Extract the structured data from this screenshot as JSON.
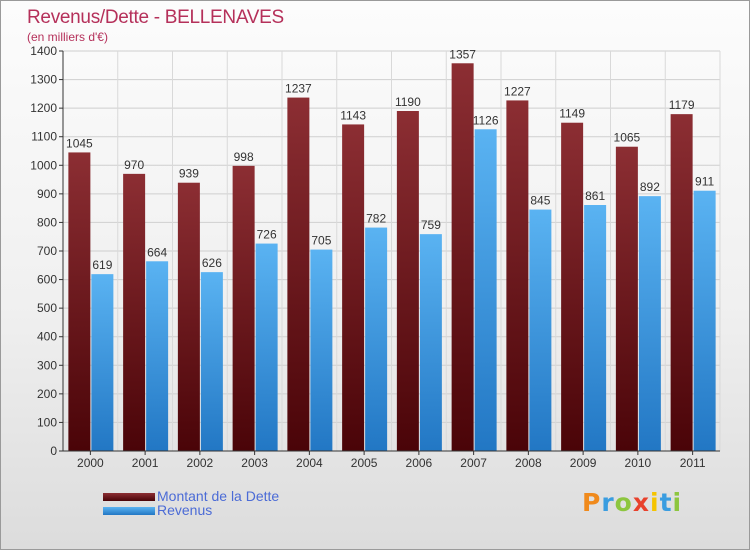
{
  "title": "Revenus/Dette - BELLENAVES",
  "subtitle": "(en milliers d'€)",
  "chart_data": {
    "type": "bar",
    "categories": [
      "2000",
      "2001",
      "2002",
      "2003",
      "2004",
      "2005",
      "2006",
      "2007",
      "2008",
      "2009",
      "2010",
      "2011"
    ],
    "series": [
      {
        "name": "Montant de la Dette",
        "values": [
          1045,
          970,
          939,
          998,
          1237,
          1143,
          1190,
          1357,
          1227,
          1149,
          1065,
          1179
        ],
        "color": "#7a1f24"
      },
      {
        "name": "Revenus",
        "values": [
          619,
          664,
          626,
          726,
          705,
          782,
          759,
          1126,
          845,
          861,
          892,
          911
        ],
        "color": "#4aa3e8"
      }
    ],
    "ylim": [
      0,
      1400
    ],
    "yticks": [
      0,
      100,
      200,
      300,
      400,
      500,
      600,
      700,
      800,
      900,
      1000,
      1100,
      1200,
      1300,
      1400
    ],
    "grid": true,
    "legend": "bottom-left"
  },
  "legend": {
    "items": [
      {
        "label": "Montant de la Dette",
        "color": "#7a1f24"
      },
      {
        "label": "Revenus",
        "color": "#4aa3e8"
      }
    ]
  },
  "logo": {
    "letters": [
      "P",
      "r",
      "o",
      "x",
      "i",
      "t",
      "i"
    ],
    "colors": [
      "#f08a1c",
      "#3a9de0",
      "#8dc63f",
      "#e8412c",
      "#f5c400",
      "#3a9de0",
      "#8dc63f"
    ]
  }
}
